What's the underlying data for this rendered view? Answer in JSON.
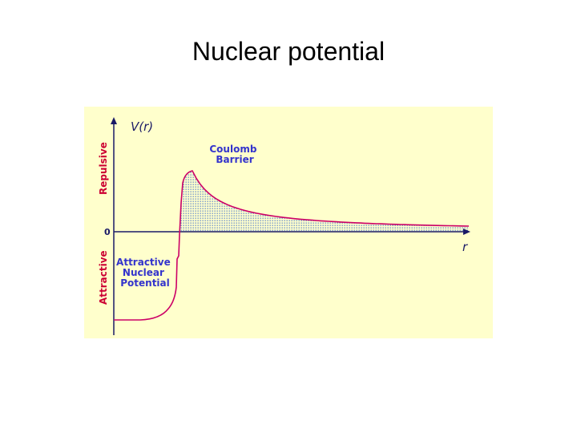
{
  "slide": {
    "title": "Nuclear potential"
  },
  "diagram": {
    "y_axis_label": "V(r)",
    "x_axis_label": "r",
    "zero_label": "0",
    "repulsive_label": "Repulsive",
    "attractive_label": "Attractive",
    "coulomb_label": [
      "Coulomb",
      "Barrier"
    ],
    "nuclear_label": [
      "Attractive",
      "Nuclear",
      "Potential"
    ],
    "colors": {
      "panel_background": "#ffffcc",
      "curve": "#cc0066",
      "axis": "#1a1a66",
      "fill_dots": "#3366cc",
      "label_blue": "#3333cc",
      "label_red": "#cc0033",
      "text_dark": "#1a1a66"
    }
  }
}
